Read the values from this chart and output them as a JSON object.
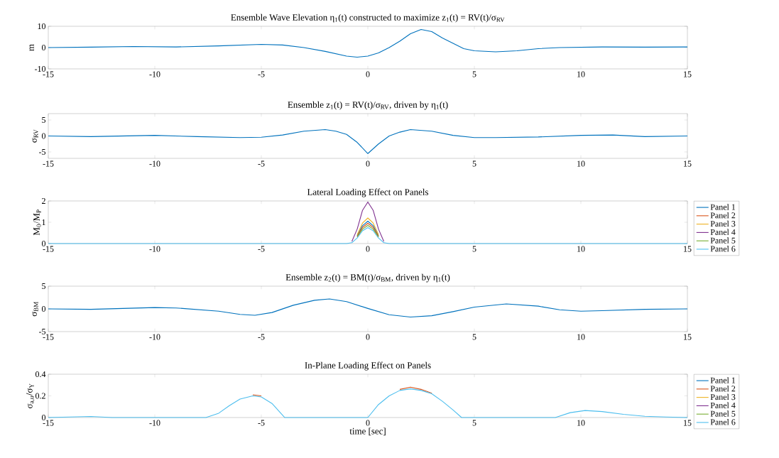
{
  "chart_data": [
    {
      "type": "line",
      "title": "Ensemble Wave Elevation η$_{1}$(t) constructed to maximize z$_{1}$(t) = RV(t)/σ$_{RV}$",
      "ylabel": "m",
      "x": [
        -15,
        -13,
        -11,
        -9,
        -7,
        -5,
        -4,
        -3,
        -2,
        -1,
        -0.5,
        0,
        0.5,
        1,
        1.5,
        2,
        2.5,
        3,
        3.5,
        4,
        4.5,
        5,
        6,
        7,
        8,
        9,
        11,
        13,
        15
      ],
      "series": [
        {
          "color": "#0072bd",
          "values": [
            0,
            0.2,
            0.5,
            0.3,
            0.8,
            1.5,
            1.2,
            0,
            -1.8,
            -4,
            -4.5,
            -4,
            -2.5,
            0,
            3,
            6.5,
            8.5,
            7.5,
            4.5,
            2,
            -0.5,
            -1.5,
            -2,
            -1.5,
            -0.5,
            0,
            0.3,
            0.2,
            0.3
          ]
        }
      ],
      "xlim": [
        -15,
        15
      ],
      "xticks": [
        -15,
        -10,
        -5,
        0,
        5,
        10,
        15
      ],
      "ylim": [
        -10,
        10
      ],
      "yticks": [
        -10,
        0,
        10
      ]
    },
    {
      "type": "line",
      "title": "Ensemble z$_{1}$(t) = RV(t)/σ$_{RV}$, driven by η$_{1}$(t)",
      "ylabel": "σ$_{RV}$",
      "x": [
        -15,
        -13,
        -10,
        -8,
        -6,
        -5,
        -4,
        -3,
        -2,
        -1.5,
        -1,
        -0.5,
        0,
        0.5,
        1,
        1.5,
        2,
        3,
        4,
        5,
        6,
        8,
        10,
        11.5,
        13,
        15
      ],
      "series": [
        {
          "color": "#0072bd",
          "values": [
            0,
            -0.2,
            0.2,
            -0.2,
            -0.5,
            -0.4,
            0.3,
            1.5,
            2,
            1.5,
            0.5,
            -2,
            -5.5,
            -2.5,
            0,
            1.2,
            2,
            1.5,
            0.2,
            -0.5,
            -0.5,
            -0.3,
            0.2,
            0.3,
            -0.2,
            0
          ]
        }
      ],
      "xlim": [
        -15,
        15
      ],
      "xticks": [
        -15,
        -10,
        -5,
        0,
        5,
        10,
        15
      ],
      "ylim": [
        -7,
        7
      ],
      "yticks": [
        -5,
        0,
        5
      ]
    },
    {
      "type": "line",
      "title": "Lateral Loading Effect on Panels",
      "ylabel": "M$_{0}$/M$_{P}$",
      "x": [
        -15,
        -1,
        -0.75,
        -0.5,
        -0.25,
        0,
        0.25,
        0.5,
        0.75,
        1,
        15
      ],
      "series": [
        {
          "name": "Panel 1",
          "color": "#0072bd",
          "values": [
            null,
            null,
            null,
            0.37,
            0.84,
            1.05,
            0.84,
            0.37,
            null,
            null,
            null
          ]
        },
        {
          "name": "Panel 2",
          "color": "#d95319",
          "values": [
            null,
            null,
            null,
            0.33,
            0.76,
            0.95,
            0.76,
            0.33,
            null,
            null,
            null
          ]
        },
        {
          "name": "Panel 3",
          "color": "#edb120",
          "values": [
            null,
            null,
            null,
            0.42,
            0.96,
            1.2,
            0.96,
            0.42,
            null,
            null,
            null
          ]
        },
        {
          "name": "Panel 4",
          "color": "#7e2f8e",
          "values": [
            null,
            null,
            0.1,
            0.68,
            1.56,
            1.95,
            1.56,
            0.68,
            0.1,
            null,
            null
          ]
        },
        {
          "name": "Panel 5",
          "color": "#77ac30",
          "values": [
            null,
            null,
            null,
            0.3,
            0.68,
            0.85,
            0.68,
            0.3,
            null,
            null,
            null
          ]
        },
        {
          "name": "Panel 6",
          "color": "#4dbeee",
          "values": [
            0,
            0,
            0.04,
            0.26,
            0.6,
            0.75,
            0.6,
            0.26,
            0.04,
            0,
            0
          ]
        }
      ],
      "xlim": [
        -15,
        15
      ],
      "xticks": [
        -15,
        -10,
        -5,
        0,
        5,
        10,
        15
      ],
      "ylim": [
        0,
        2
      ],
      "yticks": [
        0,
        1,
        2
      ],
      "legend": "right"
    },
    {
      "type": "line",
      "title": "Ensemble z$_{2}$(t) = BM(t)/σ$_{BM}$, driven by η$_{1}$(t)",
      "ylabel": "σ$_{BM}$",
      "x": [
        -15,
        -13,
        -10,
        -9,
        -7,
        -6,
        -5.3,
        -4.5,
        -3.5,
        -2.5,
        -1.8,
        -1,
        0,
        1,
        2,
        3,
        4,
        5,
        6.5,
        8,
        9,
        10,
        11,
        13,
        15
      ],
      "series": [
        {
          "color": "#0072bd",
          "values": [
            0,
            -0.1,
            0.3,
            0.2,
            -0.5,
            -1.2,
            -1.4,
            -0.8,
            0.8,
            1.9,
            2.2,
            1.6,
            0.1,
            -1.3,
            -1.8,
            -1.5,
            -0.6,
            0.4,
            1.1,
            0.6,
            -0.2,
            -0.5,
            -0.4,
            -0.1,
            0
          ]
        }
      ],
      "xlim": [
        -15,
        15
      ],
      "xticks": [
        -15,
        -10,
        -5,
        0,
        5,
        10,
        15
      ],
      "ylim": [
        -5,
        5
      ],
      "yticks": [
        -5,
        0,
        5
      ]
    },
    {
      "type": "line",
      "title": "In-Plane Loading Effect on Panels",
      "ylabel": "σ$_{a,u}$/σ$_{Y}$",
      "xlabel": "time [sec]",
      "x": [
        -15,
        -14,
        -13,
        -12,
        -7.6,
        -7,
        -6.5,
        -6,
        -5.4,
        -5,
        -4.5,
        -3.9,
        0,
        0.5,
        1,
        1.5,
        2,
        2.5,
        3,
        3.5,
        4,
        4.4,
        8.8,
        9.5,
        10.2,
        11,
        12,
        13,
        14,
        15
      ],
      "series": [
        {
          "name": "Panel 1",
          "color": "#0072bd",
          "values": [
            null,
            null,
            null,
            null,
            null,
            null,
            null,
            null,
            null,
            null,
            null,
            null,
            null,
            null,
            null,
            null,
            null,
            null,
            null,
            null,
            null,
            null,
            null,
            null,
            null,
            null,
            null,
            null,
            null,
            null
          ]
        },
        {
          "name": "Panel 2",
          "color": "#d95319",
          "values": [
            null,
            null,
            null,
            null,
            null,
            null,
            null,
            null,
            0.21,
            0.2,
            null,
            null,
            null,
            null,
            null,
            0.26,
            0.28,
            0.26,
            0.225,
            null,
            null,
            null,
            null,
            null,
            null,
            null,
            null,
            null,
            null,
            null
          ]
        },
        {
          "name": "Panel 3",
          "color": "#edb120",
          "values": [
            null,
            null,
            null,
            null,
            null,
            null,
            null,
            null,
            null,
            null,
            null,
            null,
            null,
            null,
            null,
            null,
            null,
            null,
            null,
            null,
            null,
            null,
            null,
            null,
            null,
            null,
            null,
            null,
            null,
            null
          ]
        },
        {
          "name": "Panel 4",
          "color": "#7e2f8e",
          "values": [
            null,
            null,
            null,
            null,
            null,
            null,
            null,
            null,
            null,
            null,
            null,
            null,
            null,
            null,
            null,
            null,
            null,
            null,
            null,
            null,
            null,
            null,
            null,
            null,
            null,
            null,
            null,
            null,
            null,
            null
          ]
        },
        {
          "name": "Panel 5",
          "color": "#77ac30",
          "values": [
            null,
            null,
            null,
            null,
            null,
            null,
            null,
            null,
            null,
            null,
            null,
            null,
            null,
            null,
            null,
            null,
            null,
            null,
            null,
            null,
            null,
            null,
            null,
            null,
            null,
            null,
            null,
            null,
            null,
            null
          ]
        },
        {
          "name": "Panel 6",
          "color": "#4dbeee",
          "values": [
            0,
            0.005,
            0.01,
            0,
            0,
            0.04,
            0.11,
            0.17,
            0.2,
            0.19,
            0.13,
            0,
            0,
            0.12,
            0.2,
            0.25,
            0.265,
            0.25,
            0.22,
            0.15,
            0.07,
            0,
            0,
            0.045,
            0.065,
            0.055,
            0.03,
            0.012,
            0.005,
            0
          ]
        }
      ],
      "xlim": [
        -15,
        15
      ],
      "xticks": [
        -15,
        -10,
        -5,
        0,
        5,
        10,
        15
      ],
      "ylim": [
        0,
        0.4
      ],
      "yticks": [
        0,
        0.2,
        0.4
      ],
      "legend": "right"
    }
  ]
}
